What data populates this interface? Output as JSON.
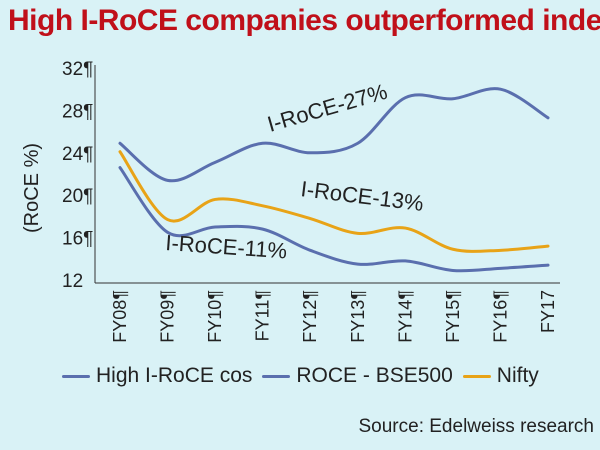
{
  "chart_data": {
    "type": "line",
    "title": "High I-RoCE companies outperformed index",
    "ylabel": "(RoCE %)",
    "ylim": [
      12,
      32
    ],
    "yticks": [
      "12",
      "16¶",
      "20¶",
      "24¶",
      "28¶",
      "32¶"
    ],
    "yticks_values": [
      12,
      16,
      20,
      24,
      28,
      32
    ],
    "categories": [
      "FY08¶",
      "FY09¶",
      "FY10¶",
      "FY11¶",
      "FY12¶",
      "FY13¶",
      "FY14¶",
      "FY15¶",
      "FY16¶",
      "FY17"
    ],
    "series": [
      {
        "name": "High I-RoCE cos",
        "color": "#5a6fae",
        "values": [
          24.9,
          21.4,
          23.1,
          24.9,
          24.0,
          24.9,
          29.2,
          29.1,
          30.0,
          27.3
        ]
      },
      {
        "name": "ROCE - BSE500",
        "color": "#5a6fae",
        "values": [
          22.6,
          16.5,
          17.0,
          16.8,
          14.8,
          13.5,
          13.8,
          12.9,
          13.1,
          13.4
        ]
      },
      {
        "name": "Nifty",
        "color": "#e8a317",
        "values": [
          24.1,
          17.7,
          19.6,
          19.0,
          17.8,
          16.4,
          16.9,
          14.9,
          14.8,
          15.2
        ]
      }
    ],
    "annotations": [
      "I-RoCE-27%",
      "I-RoCE-13%",
      "I-RoCE-11%"
    ],
    "grid": false,
    "legend_position": "bottom",
    "source": "Source: Edelweiss research"
  }
}
